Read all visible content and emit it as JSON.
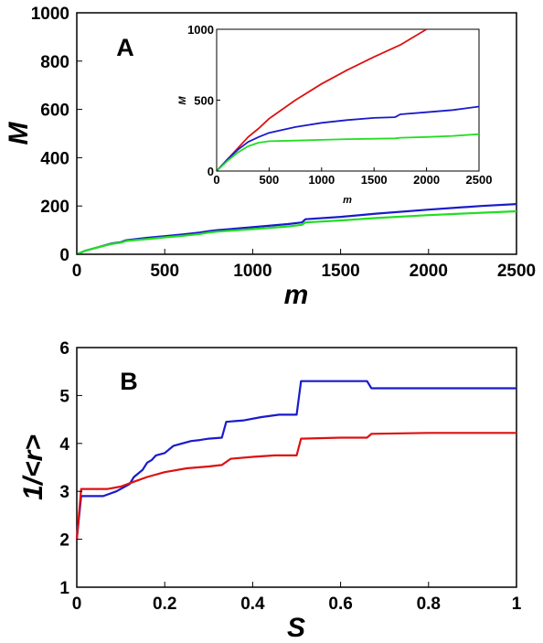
{
  "chart_data": [
    {
      "type": "line",
      "panel_label": "A",
      "xlabel": "m",
      "ylabel": "M",
      "xlim": [
        0,
        2500
      ],
      "ylim": [
        0,
        1000
      ],
      "xticks": [
        0,
        500,
        1000,
        1500,
        2000,
        2500
      ],
      "yticks": [
        0,
        200,
        400,
        600,
        800,
        1000
      ],
      "grid": false,
      "series": [
        {
          "color": "#1a1acc",
          "x": [
            0,
            50,
            100,
            200,
            250,
            280,
            300,
            400,
            500,
            600,
            700,
            750,
            800,
            1000,
            1200,
            1280,
            1300,
            1500,
            1700,
            2000,
            2300,
            2500
          ],
          "y": [
            0,
            15,
            25,
            45,
            50,
            58,
            60,
            68,
            75,
            82,
            90,
            96,
            100,
            112,
            125,
            132,
            145,
            155,
            168,
            185,
            200,
            208
          ]
        },
        {
          "color": "#22dd22",
          "x": [
            0,
            50,
            100,
            200,
            250,
            280,
            300,
            400,
            500,
            600,
            700,
            750,
            800,
            1000,
            1200,
            1280,
            1300,
            1500,
            1700,
            2000,
            2300,
            2500
          ],
          "y": [
            0,
            15,
            25,
            43,
            48,
            55,
            57,
            63,
            70,
            76,
            84,
            90,
            94,
            104,
            115,
            122,
            132,
            140,
            150,
            162,
            172,
            178
          ]
        }
      ]
    },
    {
      "type": "line",
      "panel_label": "",
      "xlabel": "m",
      "ylabel": "M",
      "xlim": [
        0,
        2500
      ],
      "ylim": [
        0,
        1000
      ],
      "xticks": [
        0,
        500,
        1000,
        1500,
        2000,
        2500
      ],
      "yticks": [
        0,
        500,
        1000
      ],
      "grid": false,
      "series": [
        {
          "color": "#dd1111",
          "x": [
            0,
            100,
            200,
            300,
            400,
            500,
            750,
            1000,
            1250,
            1500,
            1750,
            2000
          ],
          "y": [
            0,
            80,
            160,
            240,
            300,
            370,
            500,
            615,
            715,
            805,
            890,
            1000
          ]
        },
        {
          "color": "#1a1acc",
          "x": [
            0,
            100,
            200,
            300,
            400,
            500,
            750,
            1000,
            1250,
            1500,
            1700,
            1750,
            2000,
            2250,
            2500
          ],
          "y": [
            0,
            80,
            150,
            205,
            240,
            270,
            310,
            340,
            360,
            375,
            380,
            400,
            415,
            430,
            455
          ]
        },
        {
          "color": "#22dd22",
          "x": [
            0,
            100,
            200,
            300,
            400,
            500,
            750,
            1000,
            1250,
            1500,
            1700,
            1750,
            2000,
            2250,
            2500
          ],
          "y": [
            0,
            70,
            130,
            175,
            200,
            210,
            215,
            220,
            225,
            228,
            230,
            235,
            240,
            248,
            260
          ]
        }
      ]
    },
    {
      "type": "line",
      "panel_label": "B",
      "xlabel": "S",
      "ylabel": "1/<r>",
      "xlim": [
        0,
        1
      ],
      "ylim": [
        1,
        6
      ],
      "xticks": [
        0,
        0.2,
        0.4,
        0.6,
        0.8,
        1
      ],
      "yticks": [
        1,
        2,
        3,
        4,
        5,
        6
      ],
      "grid": false,
      "series": [
        {
          "color": "#1a1acc",
          "x": [
            0,
            0.01,
            0.06,
            0.09,
            0.12,
            0.13,
            0.15,
            0.16,
            0.17,
            0.18,
            0.2,
            0.22,
            0.24,
            0.26,
            0.28,
            0.3,
            0.33,
            0.34,
            0.38,
            0.42,
            0.46,
            0.5,
            0.51,
            0.6,
            0.66,
            0.67,
            0.75,
            1.0
          ],
          "y": [
            2.0,
            2.9,
            2.9,
            3.0,
            3.15,
            3.3,
            3.45,
            3.6,
            3.65,
            3.75,
            3.8,
            3.95,
            4.0,
            4.05,
            4.07,
            4.1,
            4.12,
            4.45,
            4.48,
            4.55,
            4.6,
            4.6,
            5.3,
            5.3,
            5.3,
            5.15,
            5.15,
            5.15
          ]
        },
        {
          "color": "#dd1111",
          "x": [
            0,
            0.01,
            0.07,
            0.1,
            0.13,
            0.16,
            0.2,
            0.25,
            0.3,
            0.33,
            0.35,
            0.4,
            0.45,
            0.5,
            0.51,
            0.6,
            0.66,
            0.67,
            0.8,
            1.0
          ],
          "y": [
            2.0,
            3.05,
            3.05,
            3.1,
            3.2,
            3.3,
            3.4,
            3.48,
            3.52,
            3.55,
            3.68,
            3.72,
            3.75,
            3.75,
            4.1,
            4.12,
            4.12,
            4.2,
            4.22,
            4.22
          ]
        }
      ]
    }
  ]
}
